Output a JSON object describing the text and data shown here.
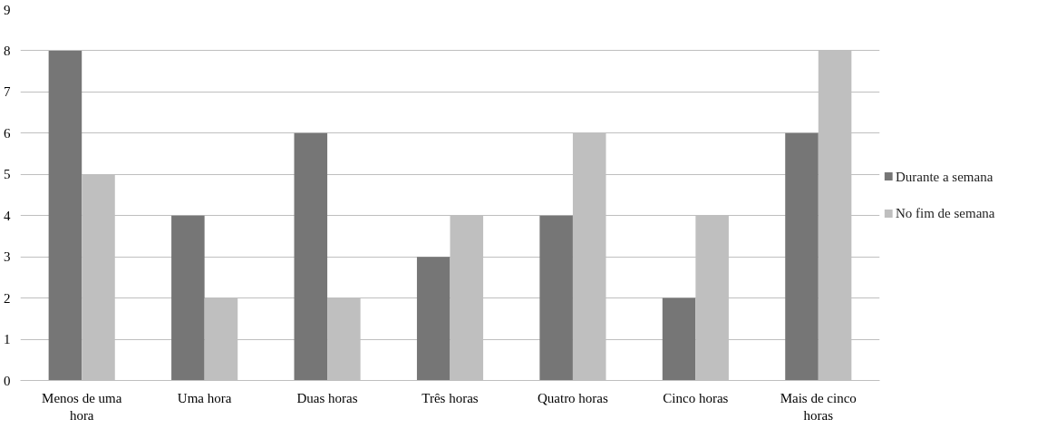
{
  "chart_data": {
    "type": "bar",
    "categories": [
      "Menos de uma\nhora",
      "Uma hora",
      "Duas horas",
      "Três horas",
      "Quatro horas",
      "Cinco horas",
      "Mais de cinco\nhoras"
    ],
    "series": [
      {
        "name": "Durante a semana",
        "color": "#767676",
        "values": [
          8,
          4,
          6,
          3,
          4,
          2,
          6
        ]
      },
      {
        "name": "No fim de semana",
        "color": "#bfbfbf",
        "values": [
          5,
          2,
          2,
          4,
          6,
          4,
          8
        ]
      }
    ],
    "ylim": [
      0,
      9
    ],
    "yticks": [
      0,
      1,
      2,
      3,
      4,
      5,
      6,
      7,
      8,
      9
    ],
    "grid": "y",
    "legend": "right"
  }
}
